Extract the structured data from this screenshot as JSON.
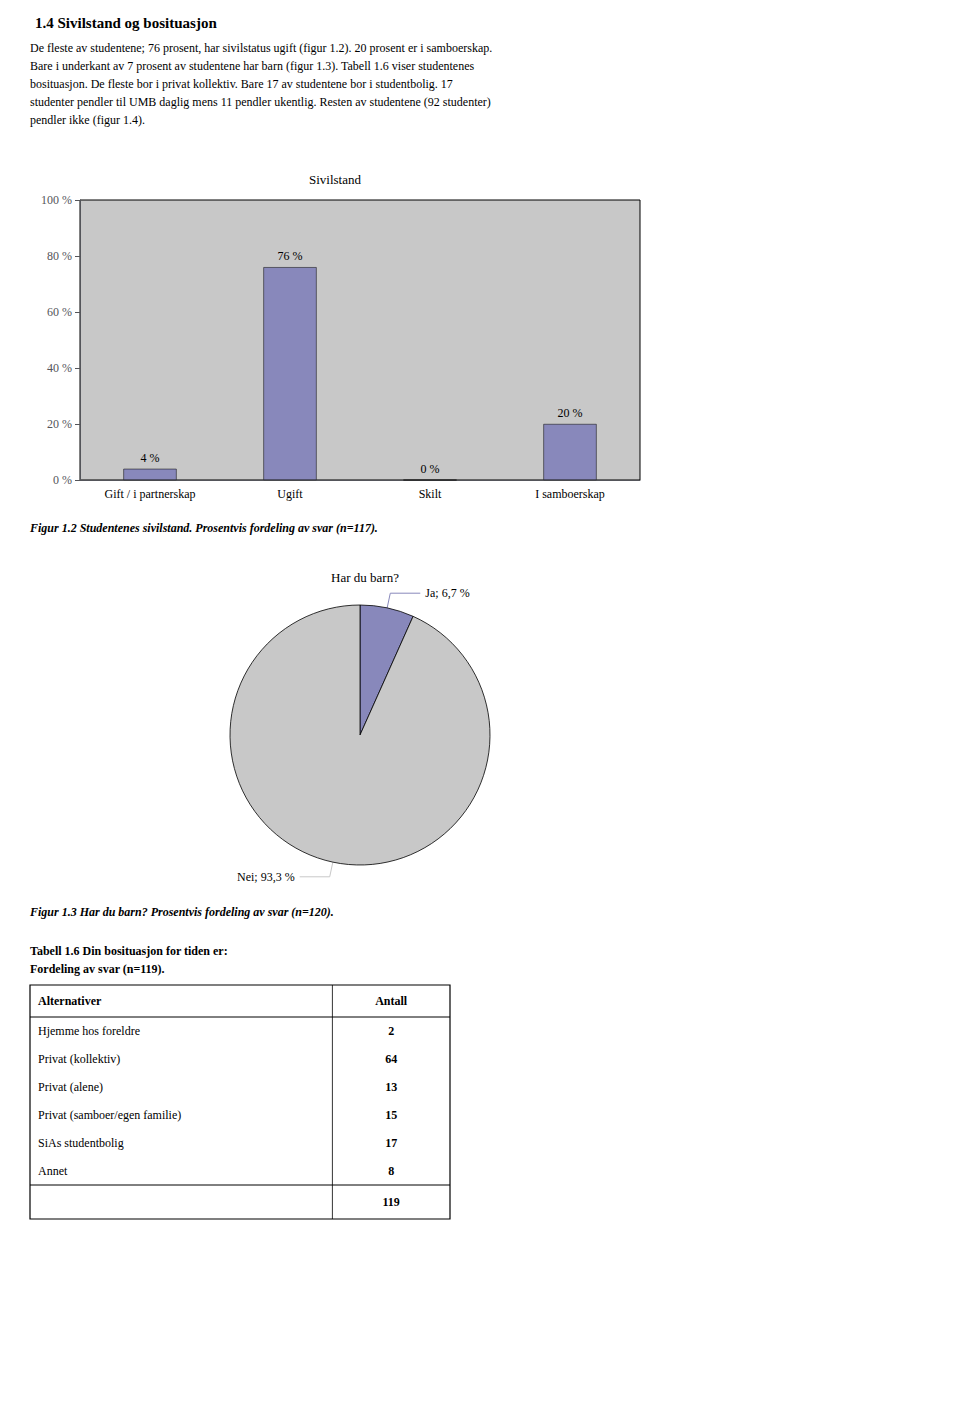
{
  "title": "1.4 Sivilstand og bosituasjon",
  "annotations": [
    "De fleste av studentene; 76 prosent, har sivilstatus ugift (figur 1.2). 20 prosent er i samboerskap.",
    "Bare i underkant av 7 prosent av studentene har barn (figur 1.3). Tabell 1.6 viser studentenes",
    "bosituasjon. De fleste bor i privat kollektiv. Bare 17 av studentene bor i studentbolig. 17",
    "studenter pendler til UMB daglig mens 11 pendler ukentlig. Resten av studentene (92 studenter)",
    "pendler ikke (figur 1.4)."
  ],
  "chart_data": [
    {
      "type": "bar",
      "title": "Sivilstand",
      "caption": "Figur 1.2 Studentenes sivilstand. Prosentvis fordeling av svar (n=117).",
      "categories": [
        "Gift / i partnerskap",
        "Ugift",
        "Skilt",
        "I samboerskap"
      ],
      "values": [
        4,
        76,
        0,
        20
      ],
      "value_labels": [
        "4 %",
        "76 %",
        "0 %",
        "20 %"
      ],
      "data_labels": true,
      "color": "#8888bb",
      "ylim": [
        0,
        100
      ],
      "yticks": [
        {
          "value": 0,
          "label": "0 %"
        },
        {
          "value": 20,
          "label": "20 %"
        },
        {
          "value": 40,
          "label": "40 %"
        },
        {
          "value": 60,
          "label": "60 %"
        },
        {
          "value": 80,
          "label": "80 %"
        },
        {
          "value": 100,
          "label": "100 %"
        }
      ],
      "grid": false
    },
    {
      "type": "pie",
      "title": "Har du barn?",
      "caption": "Figur 1.3 Har du barn? Prosentvis fordeling av svar (n=120).",
      "categories": [
        "Ja",
        "Nei"
      ],
      "values": [
        6.7,
        93.3
      ],
      "value_labels": [
        "Ja; 6,7 %",
        "Nei; 93,3 %"
      ],
      "data_labels": true,
      "colors": [
        "#8888bb",
        "#c8c8c8"
      ]
    },
    {
      "type": "table",
      "title": "Tabell 1.6 Din bosituasjon for tiden er:",
      "subtitle": "Fordeling av svar (n=119).",
      "columns": [
        "Alternativer",
        "Antall"
      ],
      "categories": [
        "Hjemme hos foreldre",
        "Privat (kollektiv)",
        "Privat (alene)",
        "Privat (samboer/egen familie)",
        "SiAs studentbolig",
        "Annet"
      ],
      "values": [
        2,
        64,
        13,
        15,
        17,
        8
      ],
      "total": 119
    }
  ]
}
